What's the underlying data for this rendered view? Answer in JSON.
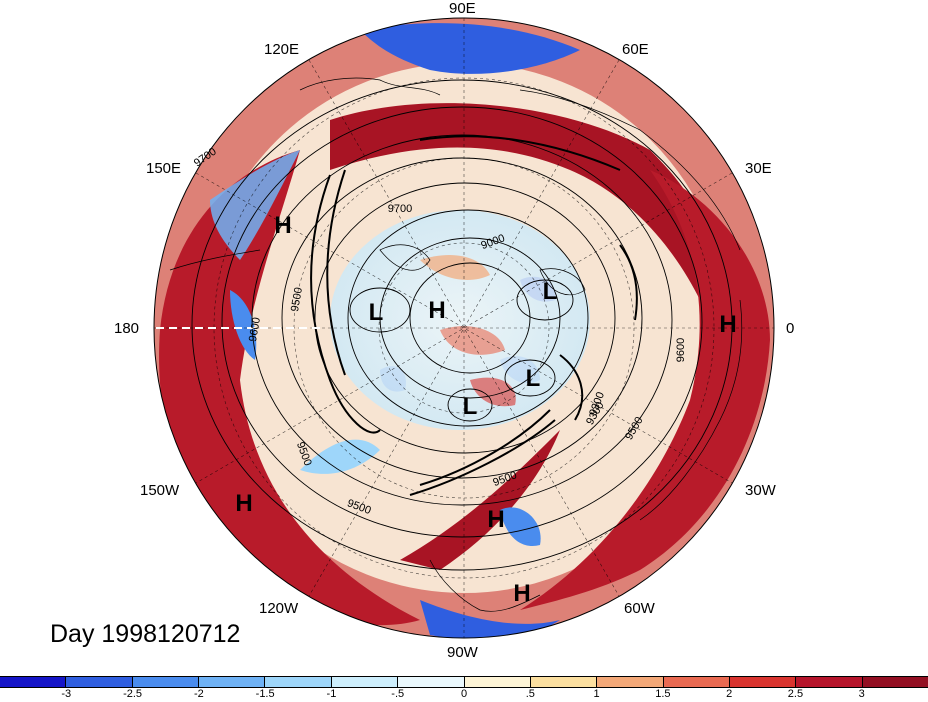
{
  "longitude_labels": {
    "lon_90e": "90E",
    "lon_60e": "60E",
    "lon_30e": "30E",
    "lon_0": "0",
    "lon_30w": "30W",
    "lon_60w": "60W",
    "lon_90w": "90W",
    "lon_120w": "120W",
    "lon_150w": "150W",
    "lon_180": "180",
    "lon_150e": "150E",
    "lon_120e": "120E"
  },
  "pressure_centers": [
    "H",
    "L",
    "H",
    "L",
    "L",
    "L",
    "H",
    "H",
    "H",
    "H"
  ],
  "contour_labels": [
    "9700",
    "9700",
    "9500",
    "9600",
    "9000",
    "9300",
    "9500",
    "9500",
    "9500",
    "9300",
    "9600",
    "9500"
  ],
  "day_label": "Day 1998120712",
  "colorbar": {
    "ticks": [
      "-3",
      "-2.5",
      "-2",
      "-1.5",
      "-1",
      "-.5",
      "0",
      ".5",
      "1",
      "1.5",
      "2",
      "2.5",
      "3"
    ],
    "colors": [
      "#1515c8",
      "#2f5ee0",
      "#4a8cee",
      "#6fb2f5",
      "#9ed6fa",
      "#cdeefc",
      "#eaf8fd",
      "#fdf4d6",
      "#fbdfa0",
      "#f3a878",
      "#e96a52",
      "#d9342f",
      "#b6152b",
      "#930f22"
    ]
  }
}
